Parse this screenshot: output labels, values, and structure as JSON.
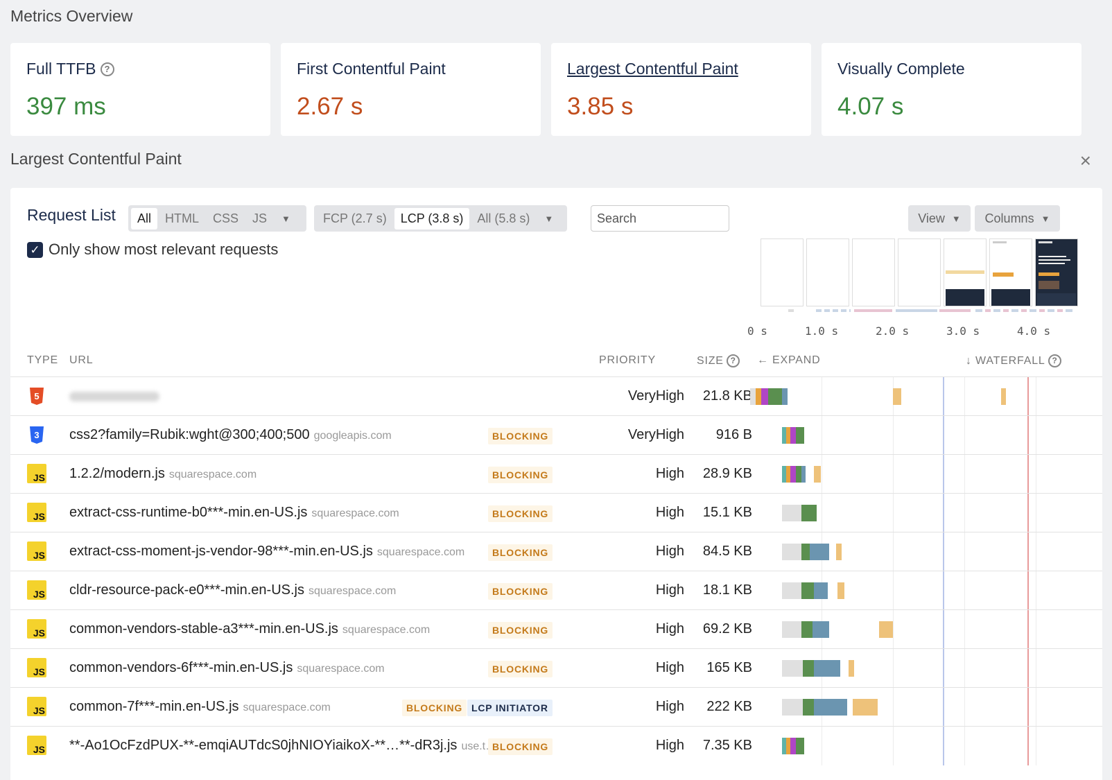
{
  "section_title": "Metrics Overview",
  "metrics": [
    {
      "label": "Full TTFB",
      "value": "397 ms",
      "status": "good",
      "has_help": true,
      "underlined": false
    },
    {
      "label": "First Contentful Paint",
      "value": "2.67 s",
      "status": "bad",
      "has_help": false,
      "underlined": false
    },
    {
      "label": "Largest Contentful Paint",
      "value": "3.85 s",
      "status": "bad",
      "has_help": false,
      "underlined": true
    },
    {
      "label": "Visually Complete",
      "value": "4.07 s",
      "status": "good",
      "has_help": false,
      "underlined": false
    }
  ],
  "detail_title": "Largest Contentful Paint",
  "close_icon": "×",
  "request_list": {
    "title": "Request List",
    "type_filter": [
      "All",
      "HTML",
      "CSS",
      "JS"
    ],
    "type_filter_active": "All",
    "time_filter": [
      "FCP (2.7 s)",
      "LCP (3.8 s)",
      "All (5.8 s)"
    ],
    "time_filter_active": "LCP (3.8 s)",
    "search_placeholder": "Search",
    "view_label": "View",
    "columns_label": "Columns",
    "checkbox_label": "Only show most relevant requests",
    "checkbox_checked": true
  },
  "axis_labels": [
    "0 s",
    "1.0 s",
    "2.0 s",
    "3.0 s",
    "4.0 s"
  ],
  "headers": {
    "type": "TYPE",
    "url": "URL",
    "priority": "PRIORITY",
    "size": "SIZE",
    "expand": "← EXPAND",
    "waterfall": "↓ WATERFALL"
  },
  "colors": {
    "good": "#3a8a3f",
    "bad": "#c14d1c",
    "navy": "#1c2b4a",
    "bar_wait": "#e0e0e0",
    "bar_dns": "#5fb3a8",
    "bar_ssl": "#b045c6",
    "bar_connect": "#e8a33d",
    "bar_ttfb": "#5a8f4f",
    "bar_download": "#6b95b0",
    "bar_render": "#eec27a",
    "fcp_line": "#b9c6ea",
    "lcp_line": "#e89a9a"
  },
  "rows": [
    {
      "type": "html",
      "url": "",
      "domain": "",
      "blurred": true,
      "tags": [],
      "priority": "VeryHigh",
      "size": "21.8 KB"
    },
    {
      "type": "css",
      "url": "css2?family=Rubik:wght@300;400;500",
      "domain": "googleapis.com",
      "blurred": false,
      "tags": [
        "BLOCKING"
      ],
      "priority": "VeryHigh",
      "size": "916 B"
    },
    {
      "type": "js",
      "url": "1.2.2/modern.js",
      "domain": "squarespace.com",
      "blurred": false,
      "tags": [
        "BLOCKING"
      ],
      "priority": "High",
      "size": "28.9 KB"
    },
    {
      "type": "js",
      "url": "extract-css-runtime-b0***-min.en-US.js",
      "domain": "squarespace.com",
      "blurred": false,
      "tags": [
        "BLOCKING"
      ],
      "priority": "High",
      "size": "15.1 KB"
    },
    {
      "type": "js",
      "url": "extract-css-moment-js-vendor-98***-min.en-US.js",
      "domain": "squarespace.com",
      "blurred": false,
      "tags": [
        "BLOCKING"
      ],
      "priority": "High",
      "size": "84.5 KB"
    },
    {
      "type": "js",
      "url": "cldr-resource-pack-e0***-min.en-US.js",
      "domain": "squarespace.com",
      "blurred": false,
      "tags": [
        "BLOCKING"
      ],
      "priority": "High",
      "size": "18.1 KB"
    },
    {
      "type": "js",
      "url": "common-vendors-stable-a3***-min.en-US.js",
      "domain": "squarespace.com",
      "blurred": false,
      "tags": [
        "BLOCKING"
      ],
      "priority": "High",
      "size": "69.2 KB"
    },
    {
      "type": "js",
      "url": "common-vendors-6f***-min.en-US.js",
      "domain": "squarespace.com",
      "blurred": false,
      "tags": [
        "BLOCKING"
      ],
      "priority": "High",
      "size": "165 KB"
    },
    {
      "type": "js",
      "url": "common-7f***-min.en-US.js",
      "domain": "squarespace.com",
      "blurred": false,
      "tags": [
        "BLOCKING",
        "LCP INITIATOR"
      ],
      "priority": "High",
      "size": "222 KB"
    },
    {
      "type": "js",
      "url": "**-Ao1OcFzdPUX-**-emqiAUTdcS0jhNIOYiaikoX-**…**-dR3j.js",
      "domain": "use.t…",
      "blurred": false,
      "tags": [
        "BLOCKING"
      ],
      "priority": "High",
      "size": "7.35 KB"
    }
  ]
}
